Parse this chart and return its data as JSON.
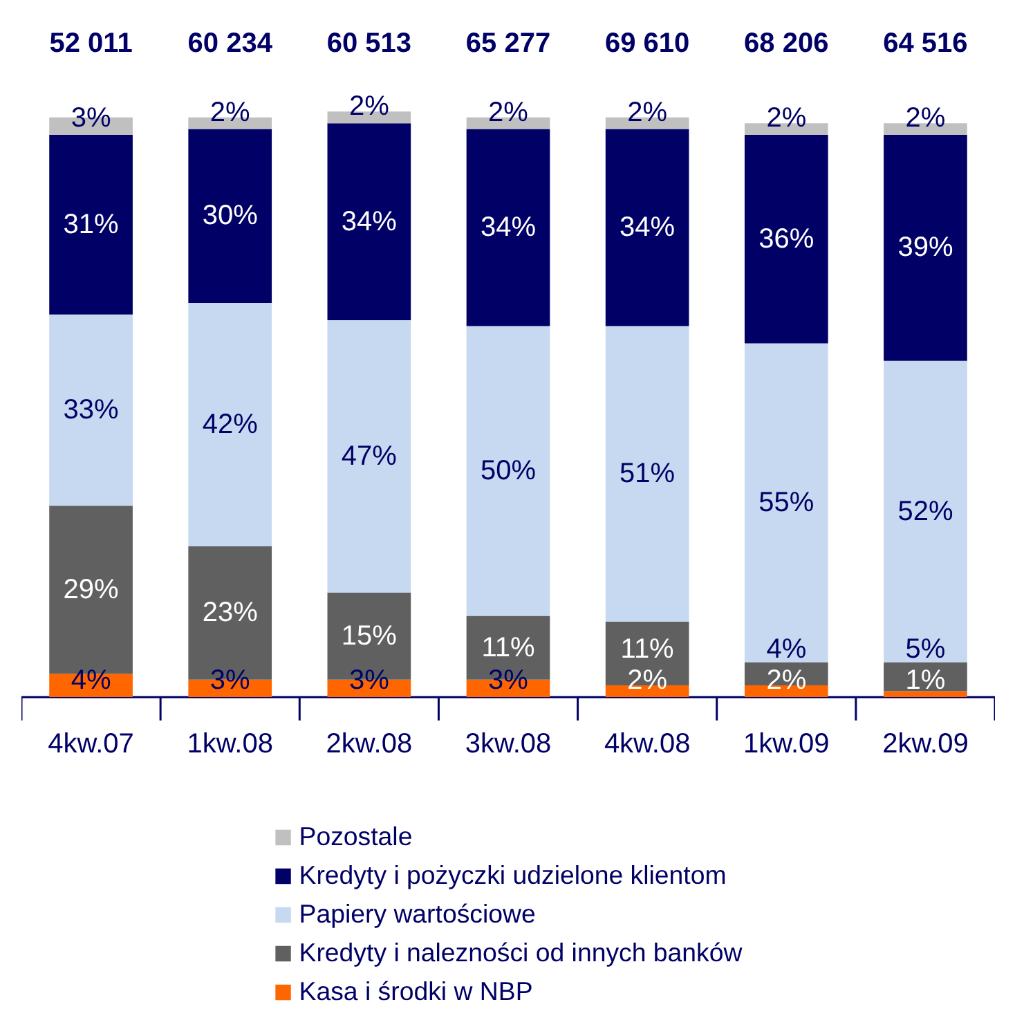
{
  "chart_data": {
    "type": "bar",
    "stacked": true,
    "legend": "bottom",
    "categories": [
      "4kw.07",
      "1kw.08",
      "2kw.08",
      "3kw.08",
      "4kw.08",
      "1kw.09",
      "2kw.09"
    ],
    "annotations": [
      "52 011",
      "60 234",
      "60 513",
      "65 277",
      "69 610",
      "68 206",
      "64 516"
    ],
    "series": [
      {
        "name": "Kasa i środki w NBP",
        "color": "#ff6600",
        "values": [
          4,
          3,
          3,
          3,
          2,
          2,
          1
        ],
        "value_labels": [
          "4%",
          "3%",
          "3%",
          "3%",
          "2%",
          "2%",
          "1%"
        ]
      },
      {
        "name": "Kredyty i nalezności od innych banków",
        "color": "#606060",
        "values": [
          29,
          23,
          15,
          11,
          11,
          4,
          5
        ],
        "value_labels": [
          "29%",
          "23%",
          "15%",
          "11%",
          "11%",
          "4%",
          "5%"
        ]
      },
      {
        "name": "Papiery wartościowe",
        "color": "#c6d9f0",
        "values": [
          33,
          42,
          47,
          50,
          51,
          55,
          52
        ],
        "value_labels": [
          "33%",
          "42%",
          "47%",
          "50%",
          "51%",
          "55%",
          "52%"
        ]
      },
      {
        "name": "Kredyty i pożyczki udzielone klientom",
        "color": "#000066",
        "values": [
          31,
          30,
          34,
          34,
          34,
          36,
          39
        ],
        "value_labels": [
          "31%",
          "30%",
          "34%",
          "34%",
          "34%",
          "36%",
          "39%"
        ]
      },
      {
        "name": "Pozostale",
        "color": "#c0c0c0",
        "values": [
          3,
          2,
          2,
          2,
          2,
          2,
          2
        ],
        "value_labels": [
          "3%",
          "2%",
          "2%",
          "2%",
          "2%",
          "2%",
          "2%"
        ]
      }
    ]
  }
}
